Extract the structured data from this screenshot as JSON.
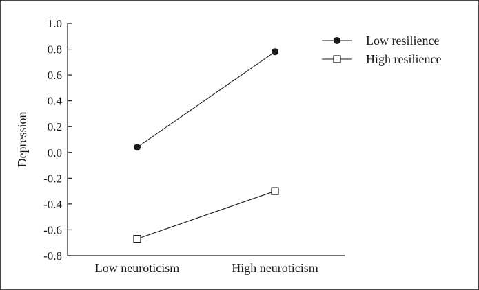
{
  "chart_data": {
    "type": "line",
    "title": "",
    "xlabel": "",
    "ylabel": "Depression",
    "categories": [
      "Low neuroticism",
      "High neuroticism"
    ],
    "ylim": [
      -0.8,
      1.0
    ],
    "yticks": [
      "1.0",
      "0.8",
      "0.6",
      "0.4",
      "0.2",
      "0.0",
      "-0.2",
      "-0.4",
      "-0.6",
      "-0.8"
    ],
    "grid": false,
    "legend_position": "top-right",
    "series": [
      {
        "name": "Low resilience",
        "values": [
          0.04,
          0.78
        ],
        "marker": "filled-circle",
        "color": "#1a1a1a"
      },
      {
        "name": "High resilience",
        "values": [
          -0.67,
          -0.3
        ],
        "marker": "open-square",
        "color": "#1a1a1a"
      }
    ]
  }
}
